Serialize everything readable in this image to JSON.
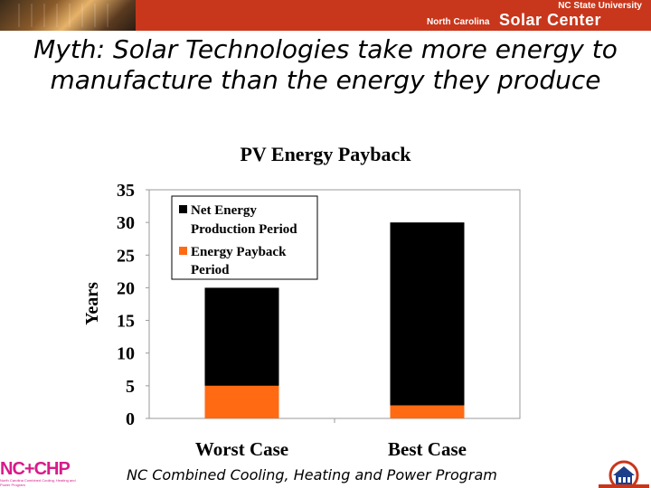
{
  "header": {
    "university": "NC State University",
    "center_prefix": "North Carolina",
    "center_name": "Solar Center"
  },
  "slide": {
    "title": "Myth: Solar Technologies take more energy to manufacture than the energy they produce"
  },
  "chart_data": {
    "type": "bar",
    "stacked": true,
    "title": "PV Energy Payback",
    "xlabel": "",
    "ylabel": "Years",
    "categories": [
      "Worst Case",
      "Best Case"
    ],
    "series": [
      {
        "name": "Energy Payback Period",
        "color": "#ff6a13",
        "values": [
          5,
          2
        ]
      },
      {
        "name": "Net Energy Production Period",
        "color": "#000000",
        "values": [
          15,
          28
        ]
      }
    ],
    "legend_labels": [
      "Net Energy Production Period",
      "Energy Payback Period"
    ],
    "yticks": [
      "0",
      "5",
      "10",
      "15",
      "20",
      "25",
      "30",
      "35"
    ],
    "ylim": [
      0,
      35
    ],
    "grid": false,
    "legend_position": "top-left"
  },
  "footer": {
    "program": "NC Combined Cooling, Heating and Power Program",
    "left_logo": "NC+CHP",
    "left_logo_tagline": "North Carolina Combined Cooling, Heating and Power Program",
    "right_logo_icon": "house-icon"
  }
}
